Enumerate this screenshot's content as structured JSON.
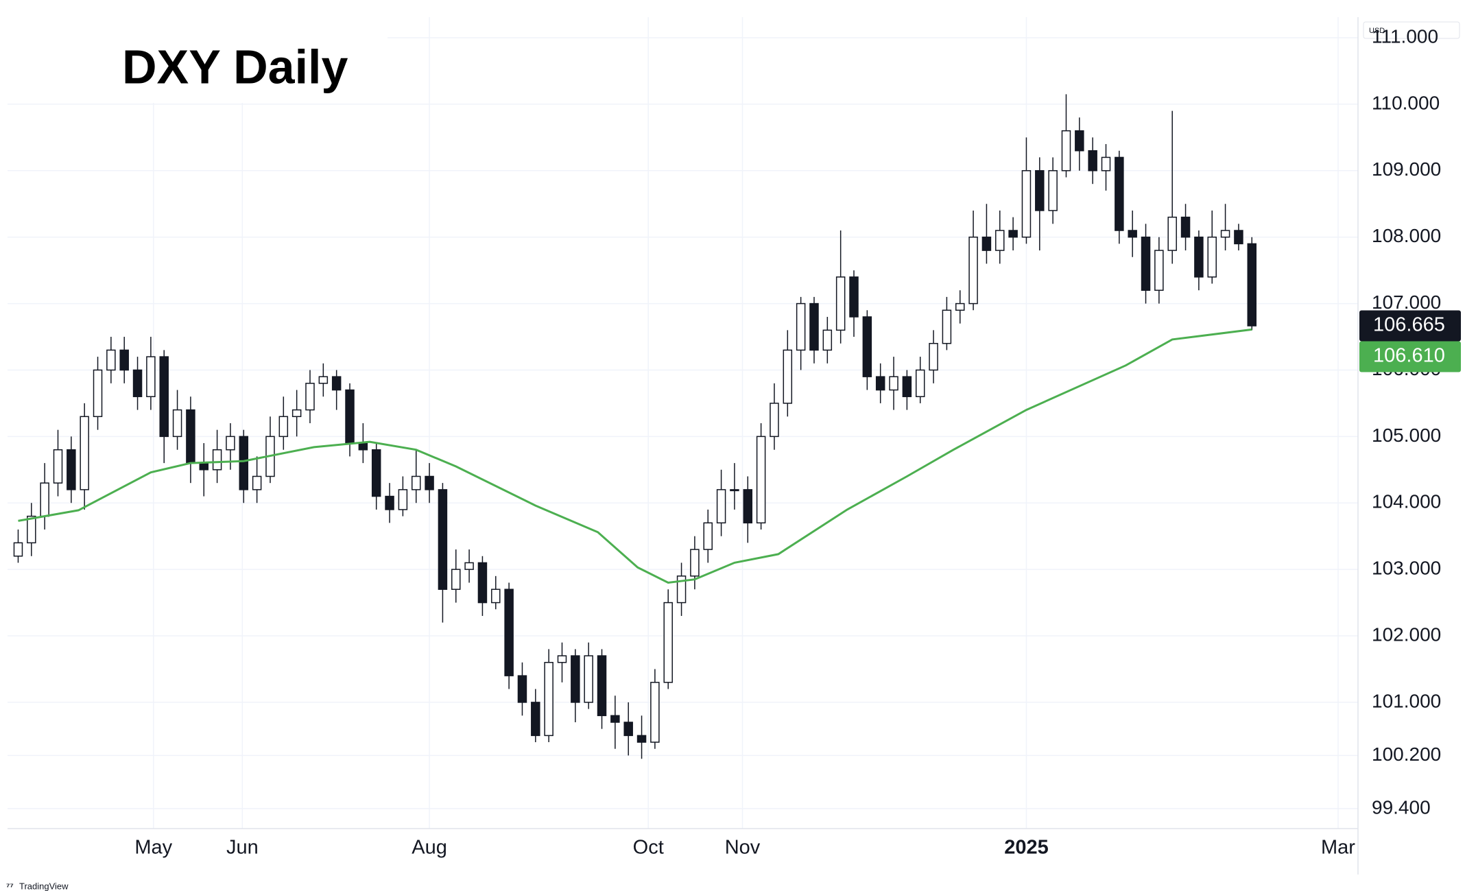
{
  "chart_data": {
    "type": "candlestick",
    "title": "DXY Daily",
    "currency": "USD",
    "brand": "TradingView",
    "xlim": [
      -0.8,
      101
    ],
    "xticks": [
      {
        "value": 10.2,
        "label": "May"
      },
      {
        "value": 16.9,
        "label": "Jun"
      },
      {
        "value": 31,
        "label": "Aug"
      },
      {
        "value": 47.5,
        "label": "Oct"
      },
      {
        "value": 54.6,
        "label": "Nov"
      },
      {
        "value": 76,
        "label": "2025",
        "bold": true
      },
      {
        "value": 99.5,
        "label": "Mar"
      }
    ],
    "ylim": [
      99.1,
      111.31
    ],
    "yticks": [
      {
        "value": 111,
        "label": "111.000"
      },
      {
        "value": 110,
        "label": "110.000"
      },
      {
        "value": 109,
        "label": "109.000"
      },
      {
        "value": 108,
        "label": "108.000"
      },
      {
        "value": 107,
        "label": "107.000"
      },
      {
        "value": 106,
        "label": "106.000"
      },
      {
        "value": 105,
        "label": "105.000"
      },
      {
        "value": 104,
        "label": "104.000"
      },
      {
        "value": 103,
        "label": "103.000"
      },
      {
        "value": 102,
        "label": "102.000"
      },
      {
        "value": 101,
        "label": "101.000"
      },
      {
        "value": 100.2,
        "label": "100.200"
      },
      {
        "value": 99.4,
        "label": "99.400"
      }
    ],
    "grid": true,
    "up_color": "#ffffff",
    "down_color": "#131722",
    "ohlc": [
      [
        103.2,
        103.6,
        103.1,
        103.4
      ],
      [
        103.4,
        104.0,
        103.2,
        103.8
      ],
      [
        103.8,
        104.6,
        103.6,
        104.3
      ],
      [
        104.3,
        105.1,
        104.1,
        104.8
      ],
      [
        104.8,
        105.0,
        104.0,
        104.2
      ],
      [
        104.2,
        105.5,
        103.9,
        105.3
      ],
      [
        105.3,
        106.2,
        105.1,
        106.0
      ],
      [
        106.0,
        106.5,
        105.8,
        106.3
      ],
      [
        106.3,
        106.5,
        105.8,
        106.0
      ],
      [
        106.0,
        106.2,
        105.4,
        105.6
      ],
      [
        105.6,
        106.5,
        105.4,
        106.2
      ],
      [
        106.2,
        106.3,
        104.6,
        105.0
      ],
      [
        105.0,
        105.7,
        104.8,
        105.4
      ],
      [
        105.4,
        105.6,
        104.3,
        104.6
      ],
      [
        104.6,
        104.9,
        104.1,
        104.5
      ],
      [
        104.5,
        105.1,
        104.3,
        104.8
      ],
      [
        104.8,
        105.2,
        104.5,
        105.0
      ],
      [
        105.0,
        105.1,
        104.0,
        104.2
      ],
      [
        104.2,
        104.7,
        104.0,
        104.4
      ],
      [
        104.4,
        105.3,
        104.3,
        105.0
      ],
      [
        105.0,
        105.6,
        104.8,
        105.3
      ],
      [
        105.3,
        105.7,
        105.0,
        105.4
      ],
      [
        105.4,
        106.0,
        105.2,
        105.8
      ],
      [
        105.8,
        106.1,
        105.6,
        105.9
      ],
      [
        105.9,
        106.0,
        105.4,
        105.7
      ],
      [
        105.7,
        105.8,
        104.7,
        104.9
      ],
      [
        104.9,
        105.2,
        104.6,
        104.8
      ],
      [
        104.8,
        104.9,
        103.9,
        104.1
      ],
      [
        104.1,
        104.3,
        103.7,
        103.9
      ],
      [
        103.9,
        104.4,
        103.8,
        104.2
      ],
      [
        104.2,
        104.8,
        104.0,
        104.4
      ],
      [
        104.4,
        104.6,
        104.0,
        104.2
      ],
      [
        104.2,
        104.3,
        102.2,
        102.7
      ],
      [
        102.7,
        103.3,
        102.5,
        103.0
      ],
      [
        103.0,
        103.3,
        102.8,
        103.1
      ],
      [
        103.1,
        103.2,
        102.3,
        102.5
      ],
      [
        102.5,
        102.9,
        102.4,
        102.7
      ],
      [
        102.7,
        102.8,
        101.2,
        101.4
      ],
      [
        101.4,
        101.6,
        100.8,
        101.0
      ],
      [
        101.0,
        101.2,
        100.4,
        100.5
      ],
      [
        100.5,
        101.8,
        100.4,
        101.6
      ],
      [
        101.6,
        101.9,
        101.3,
        101.7
      ],
      [
        101.7,
        101.8,
        100.7,
        101.0
      ],
      [
        101.0,
        101.9,
        100.9,
        101.7
      ],
      [
        101.7,
        101.8,
        100.6,
        100.8
      ],
      [
        100.8,
        101.1,
        100.3,
        100.7
      ],
      [
        100.7,
        101.0,
        100.2,
        100.5
      ],
      [
        100.5,
        100.8,
        100.15,
        100.4
      ],
      [
        100.4,
        101.5,
        100.3,
        101.3
      ],
      [
        101.3,
        102.7,
        101.2,
        102.5
      ],
      [
        102.5,
        103.1,
        102.3,
        102.9
      ],
      [
        102.9,
        103.5,
        102.7,
        103.3
      ],
      [
        103.3,
        103.9,
        103.1,
        103.7
      ],
      [
        103.7,
        104.5,
        103.5,
        104.2
      ],
      [
        104.2,
        104.6,
        103.9,
        104.2
      ],
      [
        104.2,
        104.4,
        103.4,
        103.7
      ],
      [
        103.7,
        105.2,
        103.6,
        105.0
      ],
      [
        105.0,
        105.8,
        104.8,
        105.5
      ],
      [
        105.5,
        106.6,
        105.3,
        106.3
      ],
      [
        106.3,
        107.1,
        106.0,
        107.0
      ],
      [
        107.0,
        107.1,
        106.1,
        106.3
      ],
      [
        106.3,
        106.8,
        106.1,
        106.6
      ],
      [
        106.6,
        108.1,
        106.4,
        107.4
      ],
      [
        107.4,
        107.5,
        106.5,
        106.8
      ],
      [
        106.8,
        106.9,
        105.7,
        105.9
      ],
      [
        105.9,
        106.1,
        105.5,
        105.7
      ],
      [
        105.7,
        106.2,
        105.4,
        105.9
      ],
      [
        105.9,
        106.0,
        105.4,
        105.6
      ],
      [
        105.6,
        106.2,
        105.5,
        106.0
      ],
      [
        106.0,
        106.6,
        105.8,
        106.4
      ],
      [
        106.4,
        107.1,
        106.3,
        106.9
      ],
      [
        106.9,
        107.2,
        106.7,
        107.0
      ],
      [
        107.0,
        108.4,
        106.9,
        108.0
      ],
      [
        108.0,
        108.5,
        107.6,
        107.8
      ],
      [
        107.8,
        108.4,
        107.6,
        108.1
      ],
      [
        108.1,
        108.3,
        107.8,
        108.0
      ],
      [
        108.0,
        109.5,
        107.9,
        109.0
      ],
      [
        109.0,
        109.2,
        107.8,
        108.4
      ],
      [
        108.4,
        109.2,
        108.2,
        109.0
      ],
      [
        109.0,
        110.15,
        108.9,
        109.6
      ],
      [
        109.6,
        109.8,
        109.0,
        109.3
      ],
      [
        109.3,
        109.5,
        108.8,
        109.0
      ],
      [
        109.0,
        109.4,
        108.7,
        109.2
      ],
      [
        109.2,
        109.3,
        107.9,
        108.1
      ],
      [
        108.1,
        108.4,
        107.7,
        108.0
      ],
      [
        108.0,
        108.2,
        107.0,
        107.2
      ],
      [
        107.2,
        108.0,
        107.0,
        107.8
      ],
      [
        107.8,
        109.9,
        107.6,
        108.3
      ],
      [
        108.3,
        108.5,
        107.8,
        108.0
      ],
      [
        108.0,
        108.1,
        107.2,
        107.4
      ],
      [
        107.4,
        108.4,
        107.3,
        108.0
      ],
      [
        108.0,
        108.5,
        107.8,
        108.1
      ],
      [
        108.1,
        108.2,
        107.8,
        107.9
      ],
      [
        107.9,
        108.0,
        106.6,
        106.665
      ]
    ],
    "ma": {
      "color": "#4caf50",
      "x": [
        0,
        4.55,
        10,
        13,
        17,
        22.3,
        26.5,
        30,
        33,
        39,
        43.7,
        46.7,
        49,
        51,
        54,
        57.3,
        62.5,
        67,
        70.5,
        76,
        83.5,
        87,
        93
      ],
      "values": [
        103.73,
        103.89,
        104.46,
        104.6,
        104.63,
        104.84,
        104.92,
        104.8,
        104.55,
        103.96,
        103.56,
        103.03,
        102.8,
        102.85,
        103.1,
        103.23,
        103.9,
        104.4,
        104.8,
        105.4,
        106.07,
        106.46,
        106.61
      ]
    },
    "last_price": 106.665,
    "ma_last": {
      "value": 106.61,
      "label": "106.610"
    }
  }
}
